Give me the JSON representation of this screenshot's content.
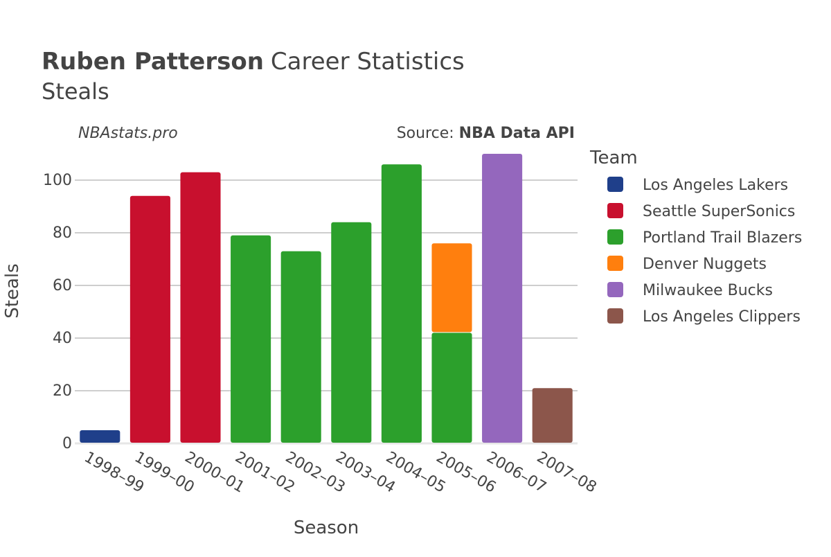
{
  "header": {
    "player_name": "Ruben Patterson",
    "title_suffix": "Career Statistics",
    "subtitle": "Steals",
    "site": "NBAstats.pro",
    "source_prefix": "Source: ",
    "source_name": "NBA Data API"
  },
  "legend": {
    "title": "Team"
  },
  "chart_data": {
    "type": "bar",
    "stacked": true,
    "xlabel": "Season",
    "ylabel": "Steals",
    "ylim": [
      0,
      110
    ],
    "yticks": [
      0,
      20,
      40,
      60,
      80,
      100
    ],
    "grid": true,
    "legend_position": "right",
    "categories": [
      "1998–99",
      "1999–00",
      "2000–01",
      "2001–02",
      "2002–03",
      "2003–04",
      "2004–05",
      "2005–06",
      "2006–07",
      "2007–08"
    ],
    "series": [
      {
        "name": "Los Angeles Lakers",
        "color": "#1f3f8a",
        "values": [
          5,
          0,
          0,
          0,
          0,
          0,
          0,
          0,
          0,
          0
        ]
      },
      {
        "name": "Seattle SuperSonics",
        "color": "#c8102e",
        "values": [
          0,
          94,
          103,
          0,
          0,
          0,
          0,
          0,
          0,
          0
        ]
      },
      {
        "name": "Portland Trail Blazers",
        "color": "#2ca02c",
        "values": [
          0,
          0,
          0,
          79,
          73,
          84,
          106,
          42,
          0,
          0
        ]
      },
      {
        "name": "Denver Nuggets",
        "color": "#ff7f0e",
        "values": [
          0,
          0,
          0,
          0,
          0,
          0,
          0,
          34,
          0,
          0
        ]
      },
      {
        "name": "Milwaukee Bucks",
        "color": "#9467bd",
        "values": [
          0,
          0,
          0,
          0,
          0,
          0,
          0,
          0,
          110,
          0
        ]
      },
      {
        "name": "Los Angeles Clippers",
        "color": "#8c564b",
        "values": [
          0,
          0,
          0,
          0,
          0,
          0,
          0,
          0,
          0,
          21
        ]
      }
    ]
  }
}
